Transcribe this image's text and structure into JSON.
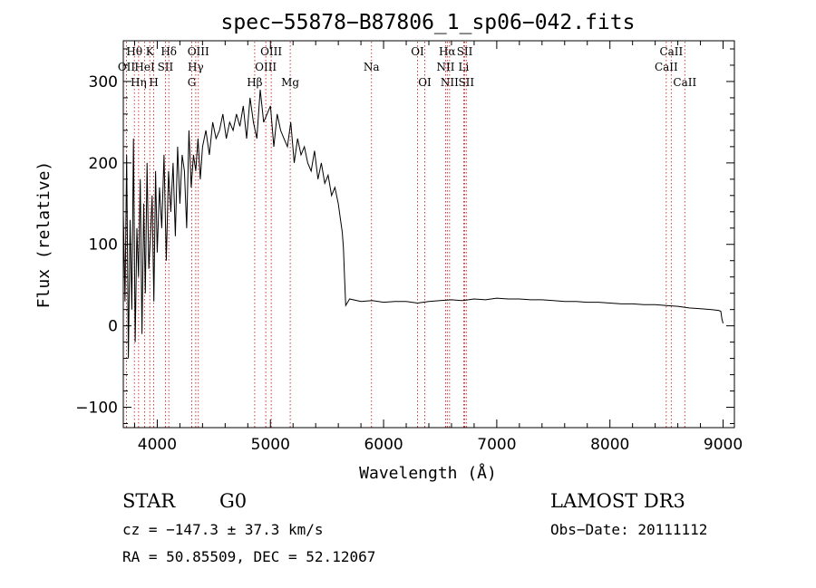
{
  "chart_data": {
    "type": "line",
    "title": "spec−55878−B87806_1_sp06−042.fits",
    "xlabel": "Wavelength (Å)",
    "ylabel": "Flux (relative)",
    "xlim": [
      3700,
      9100
    ],
    "ylim": [
      -125,
      350
    ],
    "xticks": [
      4000,
      5000,
      6000,
      7000,
      8000,
      9000
    ],
    "xtick_labels": [
      "4000",
      "5000",
      "6000",
      "7000",
      "8000",
      "9000"
    ],
    "yticks": [
      -100,
      0,
      100,
      200,
      300
    ],
    "ytick_labels": [
      "−100",
      "0",
      "100",
      "200",
      "300"
    ],
    "grid": false,
    "series": [
      {
        "name": "flux",
        "x": [
          3700,
          3715,
          3730,
          3745,
          3760,
          3775,
          3790,
          3805,
          3820,
          3835,
          3850,
          3865,
          3880,
          3895,
          3910,
          3925,
          3940,
          3955,
          3970,
          3985,
          4000,
          4020,
          4040,
          4060,
          4080,
          4100,
          4120,
          4140,
          4160,
          4180,
          4200,
          4220,
          4240,
          4260,
          4280,
          4300,
          4320,
          4340,
          4360,
          4380,
          4400,
          4430,
          4460,
          4490,
          4520,
          4550,
          4580,
          4610,
          4640,
          4670,
          4700,
          4730,
          4760,
          4790,
          4820,
          4850,
          4880,
          4910,
          4940,
          4970,
          5000,
          5030,
          5060,
          5090,
          5120,
          5150,
          5180,
          5210,
          5240,
          5270,
          5300,
          5330,
          5360,
          5390,
          5420,
          5450,
          5480,
          5510,
          5540,
          5570,
          5600,
          5620,
          5635,
          5645,
          5655,
          5665,
          5700,
          5800,
          5900,
          6000,
          6100,
          6200,
          6300,
          6400,
          6500,
          6600,
          6700,
          6800,
          6900,
          7000,
          7100,
          7200,
          7300,
          7400,
          7500,
          7600,
          7700,
          7800,
          7900,
          8000,
          8100,
          8200,
          8300,
          8400,
          8500,
          8600,
          8700,
          8800,
          8900,
          8960,
          8980,
          8990,
          9000
        ],
        "values": [
          140,
          30,
          210,
          -40,
          130,
          20,
          230,
          -20,
          120,
          60,
          180,
          -10,
          150,
          40,
          200,
          70,
          110,
          160,
          30,
          190,
          90,
          170,
          120,
          210,
          80,
          190,
          140,
          200,
          110,
          220,
          150,
          210,
          190,
          120,
          240,
          170,
          210,
          190,
          230,
          180,
          220,
          240,
          210,
          250,
          230,
          240,
          260,
          230,
          250,
          240,
          260,
          245,
          270,
          230,
          280,
          250,
          230,
          290,
          250,
          260,
          270,
          220,
          260,
          240,
          230,
          220,
          250,
          200,
          230,
          210,
          220,
          200,
          190,
          215,
          180,
          200,
          175,
          185,
          160,
          170,
          150,
          130,
          115,
          95,
          60,
          25,
          33,
          30,
          31,
          29,
          30,
          30,
          28,
          30,
          31,
          32,
          31,
          33,
          32,
          34,
          33,
          33,
          32,
          32,
          31,
          30,
          30,
          29,
          29,
          28,
          27,
          27,
          26,
          26,
          25,
          24,
          22,
          21,
          20,
          19,
          18,
          8,
          3
        ]
      }
    ],
    "lines": [
      {
        "label": "Hθ",
        "x": 3798,
        "row": 1
      },
      {
        "label": "OII",
        "x": 3728,
        "row": 2
      },
      {
        "label": "Hη",
        "x": 3835,
        "row": 3
      },
      {
        "label": "K",
        "x": 3934,
        "row": 1
      },
      {
        "label": "HeI",
        "x": 3889,
        "row": 2
      },
      {
        "label": "H",
        "x": 3969,
        "row": 3
      },
      {
        "label": "Hδ",
        "x": 4102,
        "row": 1
      },
      {
        "label": "SII",
        "x": 4072,
        "row": 2
      },
      {
        "label": "OIII",
        "x": 4363,
        "row": 1
      },
      {
        "label": "Hγ",
        "x": 4340,
        "row": 2
      },
      {
        "label": "G",
        "x": 4305,
        "row": 3
      },
      {
        "label": "Hβ",
        "x": 4861,
        "row": 3
      },
      {
        "label": "OIII",
        "x": 5007,
        "row": 1
      },
      {
        "label": "OIII",
        "x": 4959,
        "row": 2
      },
      {
        "label": "Mg",
        "x": 5175,
        "row": 3
      },
      {
        "label": "Na",
        "x": 5893,
        "row": 2
      },
      {
        "label": "OI",
        "x": 6300,
        "row": 1
      },
      {
        "label": "OI",
        "x": 6364,
        "row": 3
      },
      {
        "label": "Hα",
        "x": 6563,
        "row": 1
      },
      {
        "label": "NII",
        "x": 6548,
        "row": 2
      },
      {
        "label": "NII",
        "x": 6583,
        "row": 3
      },
      {
        "label": "SII",
        "x": 6717,
        "row": 1
      },
      {
        "label": "Li",
        "x": 6708,
        "row": 2
      },
      {
        "label": "SII",
        "x": 6731,
        "row": 3
      },
      {
        "label": "CaII",
        "x": 8542,
        "row": 1
      },
      {
        "label": "CaII",
        "x": 8498,
        "row": 2
      },
      {
        "label": "CaII",
        "x": 8662,
        "row": 3
      }
    ]
  },
  "info": {
    "class": "STAR",
    "subclass": "G0",
    "survey": "LAMOST DR3",
    "cz": "cz = −147.3 ± 37.3 km/s",
    "obs_date": "Obs−Date: 20111112",
    "coords": "RA =  50.85509, DEC =  52.12067"
  },
  "colors": {
    "spectrum": "#000000",
    "line_marker": "#cc2222",
    "axes": "#000000"
  }
}
